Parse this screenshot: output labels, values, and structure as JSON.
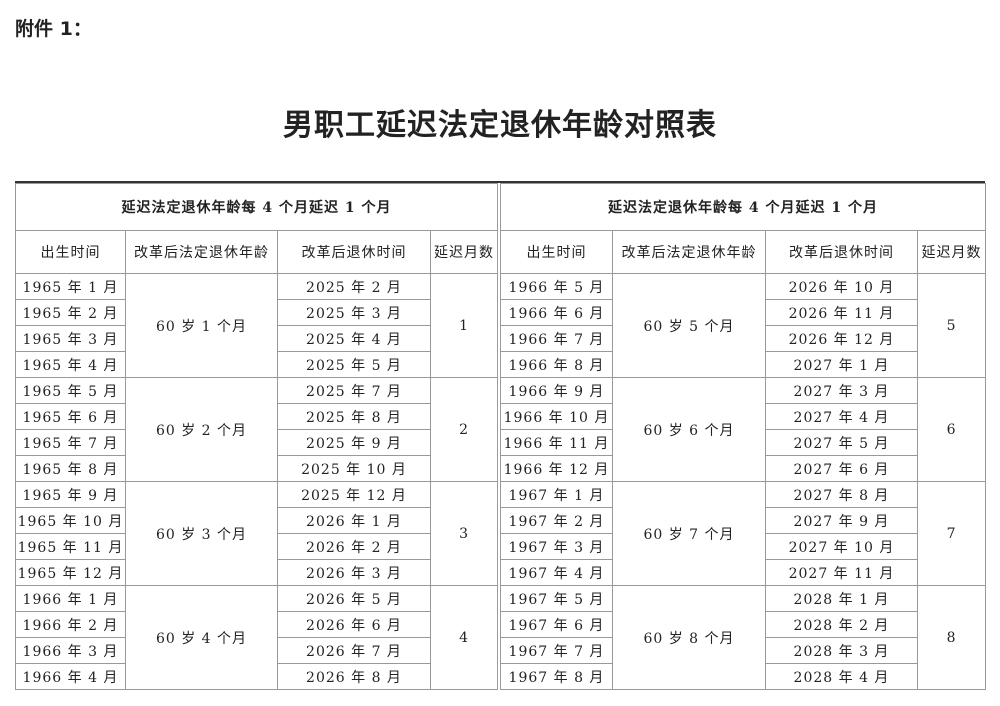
{
  "attachment_label": "附件 1：",
  "title": "男职工延迟法定退休年龄对照表",
  "tables": [
    {
      "rule": "延迟法定退休年龄每 4 个月延迟 1 个月",
      "headers": [
        "出生时间",
        "改革后法定退休年龄",
        "改革后退休时间",
        "延迟月数"
      ],
      "groups": [
        {
          "age": "60 岁 1 个月",
          "delay": "1",
          "rows": [
            {
              "birth": "1965 年 1 月",
              "retire": "2025 年 2 月"
            },
            {
              "birth": "1965 年 2 月",
              "retire": "2025 年 3 月"
            },
            {
              "birth": "1965 年 3 月",
              "retire": "2025 年 4 月"
            },
            {
              "birth": "1965 年 4 月",
              "retire": "2025 年 5 月"
            }
          ]
        },
        {
          "age": "60 岁 2 个月",
          "delay": "2",
          "rows": [
            {
              "birth": "1965 年 5 月",
              "retire": "2025 年 7 月"
            },
            {
              "birth": "1965 年 6 月",
              "retire": "2025 年 8 月"
            },
            {
              "birth": "1965 年 7 月",
              "retire": "2025 年 9 月"
            },
            {
              "birth": "1965 年 8 月",
              "retire": "2025 年 10 月"
            }
          ]
        },
        {
          "age": "60 岁 3 个月",
          "delay": "3",
          "rows": [
            {
              "birth": "1965 年 9 月",
              "retire": "2025 年 12 月"
            },
            {
              "birth": "1965 年 10 月",
              "retire": "2026 年 1 月"
            },
            {
              "birth": "1965 年 11 月",
              "retire": "2026 年 2 月"
            },
            {
              "birth": "1965 年 12 月",
              "retire": "2026 年 3 月"
            }
          ]
        },
        {
          "age": "60 岁 4 个月",
          "delay": "4",
          "rows": [
            {
              "birth": "1966 年 1 月",
              "retire": "2026 年 5 月"
            },
            {
              "birth": "1966 年 2 月",
              "retire": "2026 年 6 月"
            },
            {
              "birth": "1966 年 3 月",
              "retire": "2026 年 7 月"
            },
            {
              "birth": "1966 年 4 月",
              "retire": "2026 年 8 月"
            }
          ]
        }
      ]
    },
    {
      "rule": "延迟法定退休年龄每 4 个月延迟 1 个月",
      "headers": [
        "出生时间",
        "改革后法定退休年龄",
        "改革后退休时间",
        "延迟月数"
      ],
      "groups": [
        {
          "age": "60 岁 5 个月",
          "delay": "5",
          "rows": [
            {
              "birth": "1966 年 5 月",
              "retire": "2026 年 10 月"
            },
            {
              "birth": "1966 年 6 月",
              "retire": "2026 年 11 月"
            },
            {
              "birth": "1966 年 7 月",
              "retire": "2026 年 12 月"
            },
            {
              "birth": "1966 年 8 月",
              "retire": "2027 年 1 月"
            }
          ]
        },
        {
          "age": "60 岁 6 个月",
          "delay": "6",
          "rows": [
            {
              "birth": "1966 年 9 月",
              "retire": "2027 年 3 月"
            },
            {
              "birth": "1966 年 10 月",
              "retire": "2027 年 4 月"
            },
            {
              "birth": "1966 年 11 月",
              "retire": "2027 年 5 月"
            },
            {
              "birth": "1966 年 12 月",
              "retire": "2027 年 6 月"
            }
          ]
        },
        {
          "age": "60 岁 7 个月",
          "delay": "7",
          "rows": [
            {
              "birth": "1967 年 1 月",
              "retire": "2027 年 8 月"
            },
            {
              "birth": "1967 年 2 月",
              "retire": "2027 年 9 月"
            },
            {
              "birth": "1967 年 3 月",
              "retire": "2027 年 10 月"
            },
            {
              "birth": "1967 年 4 月",
              "retire": "2027 年 11 月"
            }
          ]
        },
        {
          "age": "60 岁 8 个月",
          "delay": "8",
          "rows": [
            {
              "birth": "1967 年 5 月",
              "retire": "2028 年 1 月"
            },
            {
              "birth": "1967 年 6 月",
              "retire": "2028 年 2 月"
            },
            {
              "birth": "1967 年 7 月",
              "retire": "2028 年 3 月"
            },
            {
              "birth": "1967 年 8 月",
              "retire": "2028 年 4 月"
            }
          ]
        }
      ]
    }
  ]
}
